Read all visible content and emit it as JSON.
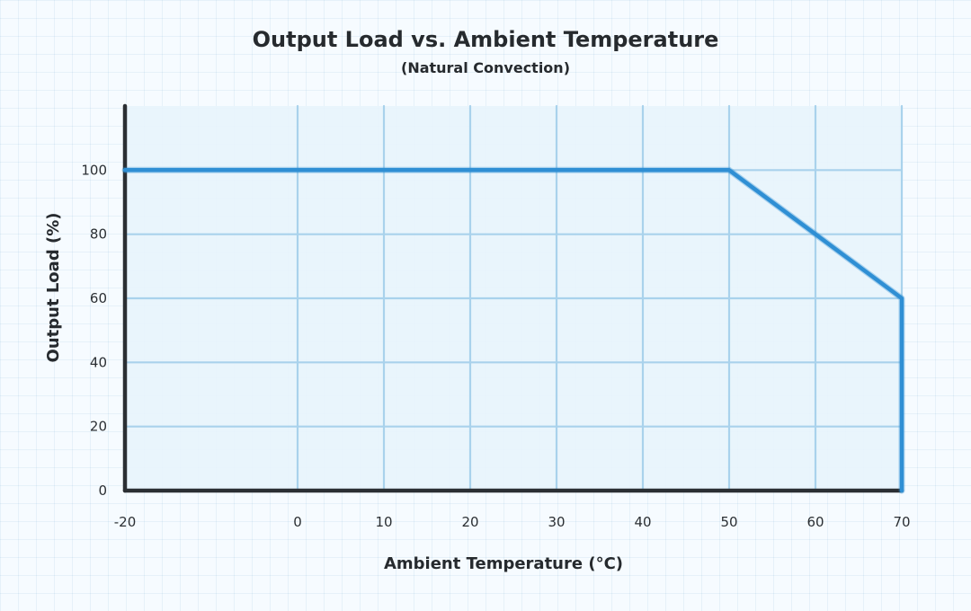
{
  "chart_data": {
    "type": "line",
    "title": "Output Load vs. Ambient Temperature",
    "subtitle": "(Natural Convection)",
    "xlabel": "Ambient Temperature (°C)",
    "ylabel": "Output Load (%)",
    "xlim": [
      -20,
      70
    ],
    "ylim": [
      0,
      120
    ],
    "xticks": [
      -20,
      0,
      10,
      20,
      30,
      40,
      50,
      60,
      70
    ],
    "yticks": [
      0,
      20,
      40,
      60,
      80,
      100
    ],
    "grid": true,
    "series": [
      {
        "x": [
          -20,
          50,
          70,
          70
        ],
        "y": [
          100,
          100,
          60,
          0
        ]
      }
    ],
    "colors": {
      "line": "#2f8fd4",
      "axis": "#2b2f33",
      "grid": "#a9d2ec",
      "plot_bg": "#e8f4fc"
    }
  }
}
